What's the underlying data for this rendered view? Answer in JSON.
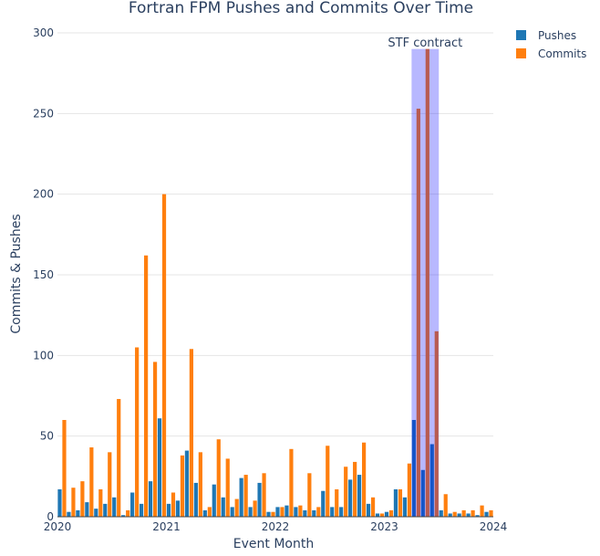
{
  "chart_data": {
    "type": "bar",
    "title": "Fortran FPM Pushes and Commits Over Time",
    "xlabel": "Event Month",
    "ylabel": "Commits & Pushes",
    "xlim": [
      "2020-01",
      "2024-01"
    ],
    "ylim": [
      0,
      300
    ],
    "yticks": [
      0,
      50,
      100,
      150,
      200,
      250,
      300
    ],
    "xticks": [
      {
        "label": "2020",
        "month": "2020-01"
      },
      {
        "label": "2021",
        "month": "2021-01"
      },
      {
        "label": "2022",
        "month": "2022-01"
      },
      {
        "label": "2023",
        "month": "2023-01"
      },
      {
        "label": "2024",
        "month": "2024-01"
      }
    ],
    "grid": true,
    "legend_position": "top-right",
    "categories": [
      "2020-01",
      "2020-02",
      "2020-03",
      "2020-04",
      "2020-05",
      "2020-06",
      "2020-07",
      "2020-08",
      "2020-09",
      "2020-10",
      "2020-11",
      "2020-12",
      "2021-01",
      "2021-02",
      "2021-03",
      "2021-04",
      "2021-05",
      "2021-06",
      "2021-07",
      "2021-08",
      "2021-09",
      "2021-10",
      "2021-11",
      "2021-12",
      "2022-01",
      "2022-02",
      "2022-03",
      "2022-04",
      "2022-05",
      "2022-06",
      "2022-07",
      "2022-08",
      "2022-09",
      "2022-10",
      "2022-11",
      "2022-12",
      "2023-01",
      "2023-02",
      "2023-03",
      "2023-04",
      "2023-05",
      "2023-06",
      "2023-07",
      "2023-08",
      "2023-09",
      "2023-10",
      "2023-11",
      "2023-12"
    ],
    "series": [
      {
        "name": "Pushes",
        "color": "#1f77b4",
        "values": [
          17,
          3,
          4,
          9,
          5,
          8,
          12,
          1,
          15,
          8,
          22,
          61,
          8,
          10,
          41,
          21,
          4,
          20,
          12,
          6,
          24,
          6,
          21,
          3,
          6,
          7,
          6,
          4,
          4,
          16,
          6,
          6,
          23,
          26,
          8,
          2,
          3,
          17,
          12,
          60,
          29,
          45,
          4,
          2,
          2,
          2,
          1,
          3
        ]
      },
      {
        "name": "Commits",
        "color": "#ff7f0e",
        "values": [
          60,
          18,
          22,
          43,
          17,
          40,
          73,
          4,
          105,
          162,
          96,
          200,
          15,
          38,
          104,
          40,
          6,
          48,
          36,
          11,
          26,
          10,
          27,
          3,
          6,
          42,
          7,
          27,
          6,
          44,
          17,
          31,
          34,
          46,
          12,
          2,
          4,
          17,
          33,
          253,
          290,
          115,
          14,
          3,
          4,
          4,
          7,
          4
        ]
      }
    ],
    "annotation": {
      "label": "STF contract",
      "month_start": "2023-04",
      "month_end": "2023-06",
      "color": "#0000ff"
    }
  }
}
